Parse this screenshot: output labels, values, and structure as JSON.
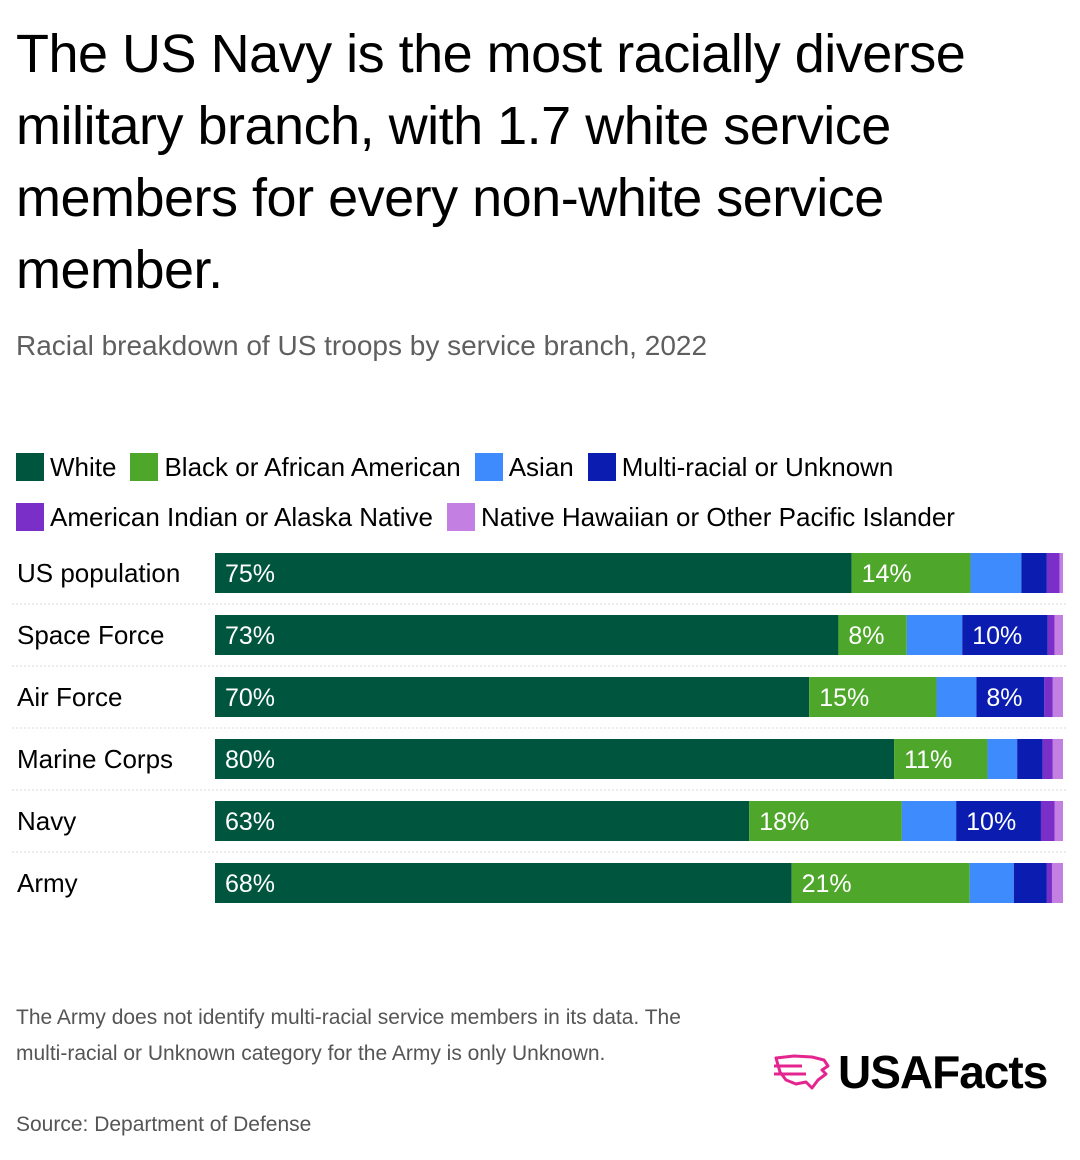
{
  "header": {
    "title": "The US Navy is the most racially diverse military branch, with 1.7 white service members for every non-white service member.",
    "subtitle": "Racial breakdown of US troops by service branch, 2022"
  },
  "colors": {
    "white": "#00553f",
    "black": "#4ea72a",
    "asian": "#3d8bfd",
    "multi": "#0a1db0",
    "aian": "#7b2fc9",
    "nhpi": "#c47fe3",
    "grid": "#d9d9d9"
  },
  "chart_data": {
    "type": "bar",
    "orientation": "horizontal",
    "stacked": true,
    "normalized": true,
    "categories": [
      "US population",
      "Space Force",
      "Air Force",
      "Marine Corps",
      "Navy",
      "Army"
    ],
    "series": [
      {
        "name": "White",
        "color_key": "white",
        "values": [
          75,
          73,
          70,
          80,
          63,
          68
        ],
        "labels": [
          "75%",
          "73%",
          "70%",
          "80%",
          "63%",
          "68%"
        ]
      },
      {
        "name": "Black or African American",
        "color_key": "black",
        "values": [
          14,
          8,
          15,
          11,
          18,
          21
        ],
        "labels": [
          "14%",
          "8%",
          "15%",
          "11%",
          "18%",
          "21%"
        ]
      },
      {
        "name": "Asian",
        "color_key": "asian",
        "values": [
          6,
          6.5,
          4.7,
          3.5,
          6.4,
          5.2
        ],
        "labels": [
          "",
          "",
          "",
          "",
          "",
          ""
        ]
      },
      {
        "name": "Multi-racial or Unknown",
        "color_key": "multi",
        "values": [
          3,
          10,
          8,
          3,
          10,
          3.9
        ],
        "labels": [
          "",
          "10%",
          "8%",
          "",
          "10%",
          ""
        ]
      },
      {
        "name": "American Indian or Alaska Native",
        "color_key": "aian",
        "values": [
          1.5,
          0.8,
          1,
          1.2,
          1.6,
          0.6
        ],
        "labels": [
          "",
          "",
          "",
          "",
          "",
          ""
        ]
      },
      {
        "name": "Native Hawaiian or Other Pacific Islander",
        "color_key": "nhpi",
        "values": [
          0.4,
          1,
          1.2,
          1.2,
          1,
          1.3
        ],
        "labels": [
          "",
          "",
          "",
          "",
          "",
          ""
        ]
      }
    ],
    "xlim": [
      0,
      100
    ]
  },
  "footer": {
    "note": "The Army does not identify multi-racial service members in its data. The multi-racial or Unknown category for the Army is only Unknown.",
    "source": "Source: Department of Defense",
    "logo_text": "USAFacts"
  }
}
